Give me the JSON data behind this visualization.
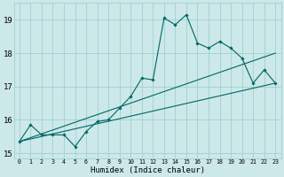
{
  "xlabel": "Humidex (Indice chaleur)",
  "bg_color": "#cce8e8",
  "grid_color": "#99cccc",
  "line_color": "#006666",
  "xlim": [
    -0.5,
    23.5
  ],
  "ylim": [
    14.85,
    19.5
  ],
  "yticks": [
    15,
    16,
    17,
    18,
    19
  ],
  "xticks": [
    0,
    1,
    2,
    3,
    4,
    5,
    6,
    7,
    8,
    9,
    10,
    11,
    12,
    13,
    14,
    15,
    16,
    17,
    18,
    19,
    20,
    21,
    22,
    23
  ],
  "data_line": {
    "x": [
      0,
      1,
      2,
      3,
      4,
      5,
      6,
      7,
      8,
      9,
      10,
      11,
      12,
      13,
      14,
      15,
      16,
      17,
      18,
      19,
      20,
      21,
      22,
      23
    ],
    "y": [
      15.35,
      15.85,
      15.55,
      15.55,
      15.55,
      15.2,
      15.65,
      15.95,
      16.0,
      16.35,
      16.7,
      17.25,
      17.2,
      19.05,
      18.85,
      19.15,
      18.3,
      18.15,
      18.35,
      18.15,
      17.85,
      17.1,
      17.5,
      17.1
    ]
  },
  "trend1": {
    "x": [
      0,
      23
    ],
    "y": [
      15.35,
      17.1
    ]
  },
  "trend2": {
    "x": [
      0,
      23
    ],
    "y": [
      15.35,
      18.0
    ]
  }
}
